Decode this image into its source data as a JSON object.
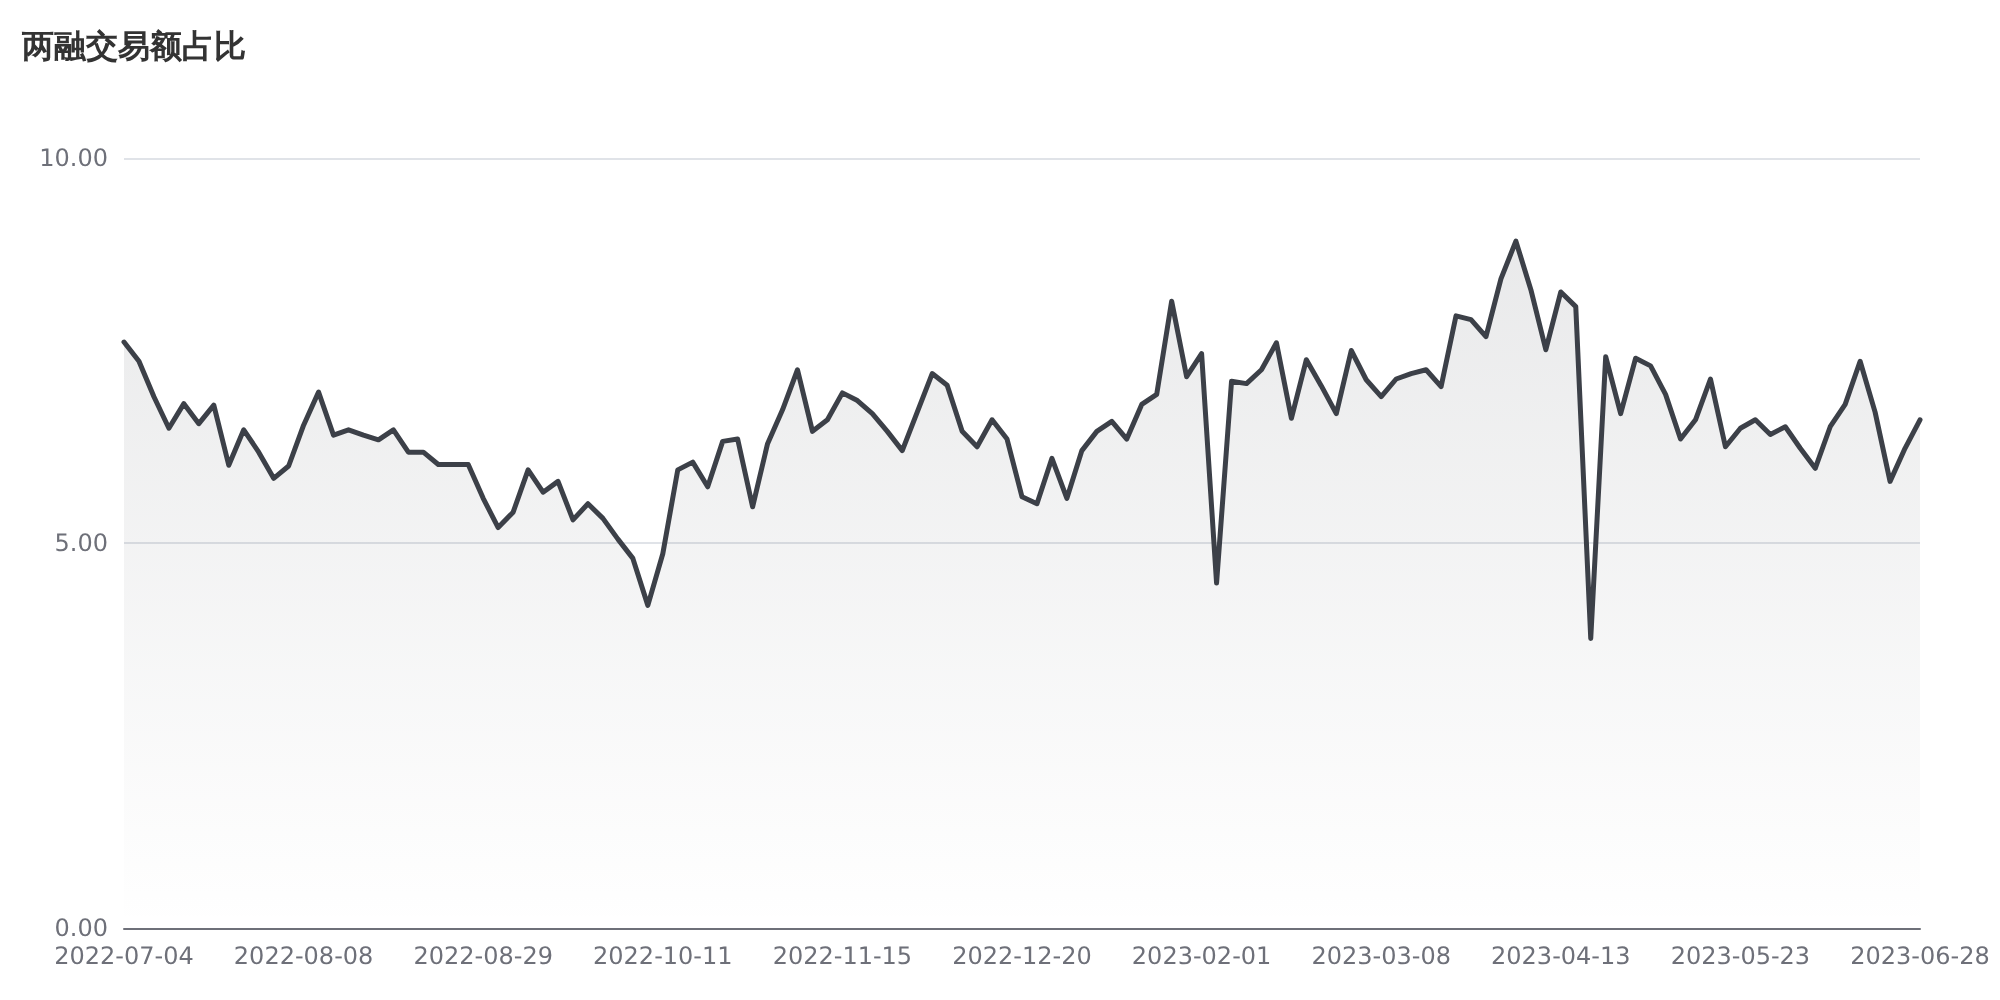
{
  "chart_data": {
    "type": "area",
    "title": "两融交易额占比",
    "categories": [
      "2022-07-04",
      null,
      null,
      null,
      null,
      null,
      null,
      null,
      null,
      null,
      null,
      null,
      "2022-08-08",
      null,
      null,
      null,
      null,
      null,
      null,
      null,
      null,
      null,
      null,
      null,
      "2022-08-29",
      null,
      null,
      null,
      null,
      null,
      null,
      null,
      null,
      null,
      null,
      null,
      "2022-10-11",
      null,
      null,
      null,
      null,
      null,
      null,
      null,
      null,
      null,
      null,
      null,
      "2022-11-15",
      null,
      null,
      null,
      null,
      null,
      null,
      null,
      null,
      null,
      null,
      null,
      "2022-12-20",
      null,
      null,
      null,
      null,
      null,
      null,
      null,
      null,
      null,
      null,
      null,
      "2023-02-01",
      null,
      null,
      null,
      null,
      null,
      null,
      null,
      null,
      null,
      null,
      null,
      "2023-03-08",
      null,
      null,
      null,
      null,
      null,
      null,
      null,
      null,
      null,
      null,
      null,
      "2023-04-13",
      null,
      null,
      null,
      null,
      null,
      null,
      null,
      null,
      null,
      null,
      null,
      "2023-05-23",
      null,
      null,
      null,
      null,
      null,
      null,
      null,
      null,
      null,
      null,
      null,
      "2023-06-28"
    ],
    "series": [
      {
        "color": "#3c4048",
        "values": [
          7.61,
          7.36,
          6.9,
          6.49,
          6.81,
          6.55,
          6.79,
          6.01,
          6.47,
          6.18,
          5.84,
          6.0,
          6.53,
          6.96,
          6.4,
          6.47,
          6.4,
          6.34,
          6.47,
          6.18,
          6.18,
          6.02,
          6.02,
          6.02,
          5.58,
          5.2,
          5.4,
          5.95,
          5.66,
          5.8,
          5.3,
          5.51,
          5.32,
          5.05,
          4.8,
          4.19,
          4.86,
          5.95,
          6.05,
          5.73,
          6.32,
          6.35,
          5.47,
          6.29,
          6.73,
          7.25,
          6.45,
          6.6,
          6.95,
          6.85,
          6.68,
          6.45,
          6.2,
          6.7,
          7.2,
          7.05,
          6.45,
          6.25,
          6.6,
          6.35,
          5.6,
          5.51,
          6.1,
          5.58,
          6.2,
          6.45,
          6.58,
          6.35,
          6.8,
          6.93,
          8.14,
          7.16,
          7.46,
          4.48,
          7.1,
          7.07,
          7.25,
          7.6,
          6.62,
          7.38,
          7.04,
          6.68,
          7.5,
          7.12,
          6.9,
          7.13,
          7.2,
          7.25,
          7.03,
          7.95,
          7.9,
          7.68,
          8.43,
          8.92,
          8.29,
          7.51,
          8.26,
          8.07,
          3.76,
          7.42,
          6.68,
          7.4,
          7.3,
          6.93,
          6.35,
          6.6,
          7.13,
          6.25,
          6.49,
          6.6,
          6.41,
          6.51,
          6.23,
          5.97,
          6.51,
          6.8,
          7.36,
          6.7,
          5.8,
          6.23,
          6.6
        ]
      }
    ],
    "ylim": [
      0,
      10
    ],
    "yticks": [
      {
        "value": 0,
        "label": "0.00"
      },
      {
        "value": 5,
        "label": "5.00"
      },
      {
        "value": 10,
        "label": "10.00"
      }
    ],
    "grid": "y",
    "marker": "none",
    "line_style": "solid"
  }
}
